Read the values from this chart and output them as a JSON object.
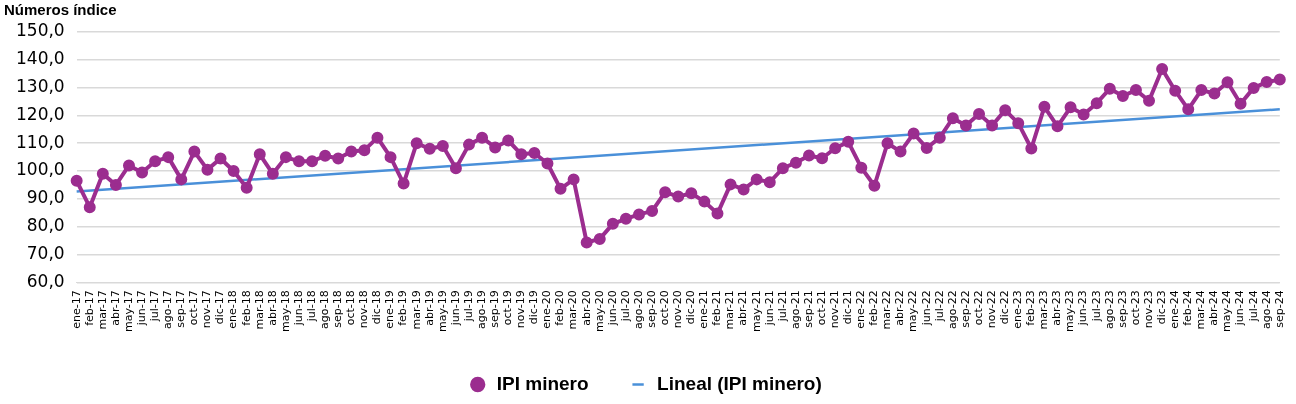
{
  "chart_data": {
    "type": "line",
    "title": "Números índice",
    "categories": [
      "ene-17",
      "feb-17",
      "mar-17",
      "abr-17",
      "may-17",
      "jun-17",
      "jul-17",
      "ago-17",
      "sep-17",
      "oct-17",
      "nov-17",
      "dic-17",
      "ene-18",
      "feb-18",
      "mar-18",
      "abr-18",
      "may-18",
      "jun-18",
      "jul-18",
      "ago-18",
      "sep-18",
      "oct-18",
      "nov-18",
      "dic-18",
      "ene-19",
      "feb-19",
      "mar-19",
      "abr-19",
      "may-19",
      "jun-19",
      "jul-19",
      "ago-19",
      "sep-19",
      "oct-19",
      "nov-19",
      "dic-19",
      "ene-20",
      "feb-20",
      "mar-20",
      "abr-20",
      "may-20",
      "jun-20",
      "jul-20",
      "ago-20",
      "sep-20",
      "oct-20",
      "nov-20",
      "dic-20",
      "ene-21",
      "feb-21",
      "mar-21",
      "abr-21",
      "may-21",
      "jun-21",
      "jul-21",
      "ago-21",
      "sep-21",
      "oct-21",
      "nov-21",
      "dic-21",
      "ene-22",
      "feb-22",
      "mar-22",
      "abr-22",
      "may-22",
      "jun-22",
      "jul-22",
      "ago-22",
      "sep-22",
      "oct-22",
      "nov-22",
      "dic-22",
      "ene-23",
      "feb-23",
      "mar-23",
      "abr-23",
      "may-23",
      "jun-23",
      "jul-23",
      "ago-23",
      "sep-23",
      "oct-23",
      "nov-23",
      "dic-23",
      "ene-24",
      "feb-24",
      "mar-24",
      "abr-24",
      "may-24",
      "jun-24",
      "jul-24",
      "ago-24",
      "sep-24"
    ],
    "series": [
      {
        "name": "IPI minero",
        "color": "#9b2d8f",
        "marker": "circle",
        "values": [
          96.5,
          87,
          99,
          95,
          102,
          99.5,
          103.5,
          105,
          97,
          107,
          100.5,
          104.5,
          100,
          94,
          106,
          99,
          105,
          103.5,
          103.5,
          105.5,
          104.5,
          107,
          107.5,
          112,
          105,
          95.5,
          110,
          108,
          109,
          101,
          109.5,
          112,
          108.5,
          111,
          106,
          106.5,
          102.7,
          93.6,
          97,
          74.3,
          75.6,
          81,
          82.8,
          84.4,
          85.6,
          92.4,
          90.8,
          92,
          89,
          84.7,
          95.2,
          93.4,
          97,
          96,
          101,
          103,
          105.6,
          104.6,
          108.2,
          110.5,
          101.2,
          94.7,
          110,
          107,
          113.5,
          108.3,
          112,
          119,
          116.4,
          120.5,
          116.4,
          121.9,
          117.2,
          108.1,
          123.1,
          116.1,
          122.9,
          120.3,
          124.4,
          129.6,
          127,
          129.1,
          125.3,
          136.7,
          128.9,
          122.2,
          129.1,
          127.9,
          131.9,
          124.2,
          129.9,
          132,
          132.9
        ]
      },
      {
        "name": "Lineal (IPI minero)",
        "color": "#4a90d9",
        "marker": "none",
        "x": [
          "ene-17",
          "sep-24"
        ],
        "values": [
          92.6,
          122.2
        ]
      }
    ],
    "ylim": [
      60,
      150
    ],
    "yticks": [
      {
        "value": 60,
        "label": "60,0"
      },
      {
        "value": 70,
        "label": "70,0"
      },
      {
        "value": 80,
        "label": "80,0"
      },
      {
        "value": 90,
        "label": "90,0"
      },
      {
        "value": 100,
        "label": "100,0"
      },
      {
        "value": 110,
        "label": "110,0"
      },
      {
        "value": 120,
        "label": "120,0"
      },
      {
        "value": 130,
        "label": "130,0"
      },
      {
        "value": 140,
        "label": "140,0"
      },
      {
        "value": 150,
        "label": "150,0"
      }
    ],
    "grid": "y",
    "legend": "bottom",
    "line_style": "solid"
  }
}
